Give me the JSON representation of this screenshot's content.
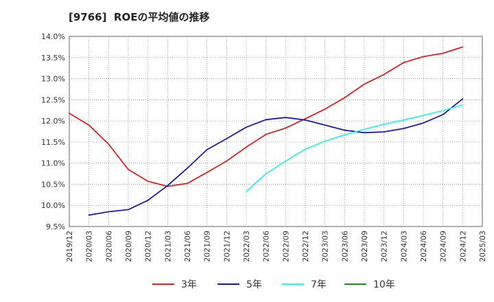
{
  "chart_data": {
    "type": "line",
    "title": "[9766]  ROEの平均値の推移",
    "xlabel": "",
    "ylabel": "",
    "ylim": [
      9.5,
      14.0
    ],
    "y_ticks": [
      "9.5%",
      "10.0%",
      "10.5%",
      "11.0%",
      "11.5%",
      "12.0%",
      "12.5%",
      "13.0%",
      "13.5%",
      "14.0%"
    ],
    "x_ticks": [
      "2019/12",
      "2020/03",
      "2020/06",
      "2020/09",
      "2020/12",
      "2021/03",
      "2021/06",
      "2021/09",
      "2021/12",
      "2022/03",
      "2022/06",
      "2022/09",
      "2022/12",
      "2023/03",
      "2023/06",
      "2023/09",
      "2023/12",
      "2024/03",
      "2024/06",
      "2024/09",
      "2024/12",
      "2025/03"
    ],
    "grid": true,
    "legend_position": "bottom",
    "series": [
      {
        "name": "3年",
        "color": "#e02020",
        "points": [
          [
            0,
            12.18
          ],
          [
            1,
            11.9
          ],
          [
            2,
            11.45
          ],
          [
            3,
            10.85
          ],
          [
            4,
            10.57
          ],
          [
            5,
            10.45
          ],
          [
            6,
            10.52
          ],
          [
            7,
            10.78
          ],
          [
            8,
            11.05
          ],
          [
            9,
            11.38
          ],
          [
            10,
            11.68
          ],
          [
            11,
            11.83
          ],
          [
            12,
            12.05
          ],
          [
            13,
            12.28
          ],
          [
            14,
            12.55
          ],
          [
            15,
            12.87
          ],
          [
            16,
            13.1
          ],
          [
            17,
            13.38
          ],
          [
            18,
            13.52
          ],
          [
            19,
            13.6
          ],
          [
            20,
            13.75
          ]
        ]
      },
      {
        "name": "5年",
        "color": "#1a1aaa",
        "points": [
          [
            1,
            9.77
          ],
          [
            2,
            9.85
          ],
          [
            3,
            9.9
          ],
          [
            4,
            10.12
          ],
          [
            5,
            10.47
          ],
          [
            6,
            10.88
          ],
          [
            7,
            11.32
          ],
          [
            8,
            11.58
          ],
          [
            9,
            11.85
          ],
          [
            10,
            12.03
          ],
          [
            11,
            12.08
          ],
          [
            12,
            12.02
          ],
          [
            13,
            11.9
          ],
          [
            14,
            11.78
          ],
          [
            15,
            11.72
          ],
          [
            16,
            11.74
          ],
          [
            17,
            11.82
          ],
          [
            18,
            11.95
          ],
          [
            19,
            12.15
          ],
          [
            20,
            12.52
          ]
        ]
      },
      {
        "name": "7年",
        "color": "#33eeee",
        "points": [
          [
            9,
            10.33
          ],
          [
            10,
            10.75
          ],
          [
            11,
            11.05
          ],
          [
            12,
            11.33
          ],
          [
            13,
            11.52
          ],
          [
            14,
            11.67
          ],
          [
            15,
            11.8
          ],
          [
            16,
            11.92
          ],
          [
            17,
            12.02
          ],
          [
            18,
            12.13
          ],
          [
            19,
            12.24
          ],
          [
            20,
            12.38
          ]
        ]
      },
      {
        "name": "10年",
        "color": "#228822",
        "points": []
      }
    ]
  }
}
